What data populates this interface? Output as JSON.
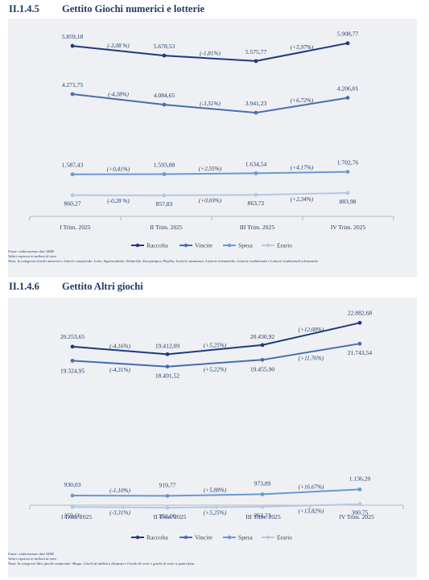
{
  "section1": {
    "number": "II.1.4.5",
    "title": "Gettito Giochi numerici e lotterie"
  },
  "section2": {
    "number": "II.1.4.6",
    "title": "Gettito Altri giochi"
  },
  "notes1": [
    "Fonte: elaborazione dati ADM",
    "Valori espressi in milioni di euro",
    "Nota: la categoria Giochi numerici e lotterie comprende: Lotto, Superenalotto, Winforlife, Eurojackpot, PlaySix, Lotterie istantanee, Lotterie telematiche, Lotterie tradizionali e Lotterie tradizionali telematiche"
  ],
  "notes2": [
    "Fonte: elaborazione dati ADM",
    "Valori espressi in milioni di euro",
    "Nota: la categoria Altri giochi comprende: Bingo, Giochi di abilità a distanza e Giochi di carte e giochi di sorte a quota fissa."
  ],
  "chart_data": [
    {
      "type": "line",
      "categories": [
        "I Trim. 2025",
        "II Trim. 2025",
        "III Trim. 2025",
        "IV Trim. 2025"
      ],
      "series": [
        {
          "name": "Raccolta",
          "color": "#1f3a7a",
          "values": [
            5859.18,
            5678.53,
            5575.77,
            5908.77
          ],
          "labels": [
            "5.859,18",
            "5.678,53",
            "5.575,77",
            "5.908,77"
          ],
          "changes": [
            "(-3,08 %)",
            "(-1,81%)",
            "(+5,97%)"
          ]
        },
        {
          "name": "Vincite",
          "color": "#4a6cb0",
          "values": [
            4271.75,
            4084.65,
            3941.23,
            4206.01
          ],
          "labels": [
            "4.271,75",
            "4.084,65",
            "3.941,23",
            "4.206,01"
          ],
          "changes": [
            "(-4,38%)",
            "(-3,51%)",
            "(+6,72%)"
          ]
        },
        {
          "name": "Spesa",
          "color": "#6a98d0",
          "values": [
            1587.43,
            1593.88,
            1634.54,
            1702.76
          ],
          "labels": [
            "1.587,43",
            "1.593,88",
            "1.634,54",
            "1.702,76"
          ],
          "changes": [
            "(+0,41%)",
            "(+2,55%)",
            "(+4,17%)"
          ]
        },
        {
          "name": "Erario",
          "color": "#b4c8e4",
          "values": [
            860.27,
            857.83,
            863.72,
            883.98
          ],
          "labels": [
            "860,27",
            "857,83",
            "863,72",
            "883,98"
          ],
          "changes": [
            "(-0,28 %)",
            "(+0,69%)",
            "(+2,34%)"
          ]
        }
      ],
      "legend": "bottom"
    },
    {
      "type": "line",
      "categories": [
        "I Trim. 2025",
        "II Trim. 2025",
        "III Trim. 2025",
        "IV Trim. 2025"
      ],
      "series": [
        {
          "name": "Raccolta",
          "color": "#1f3a7a",
          "values": [
            20253.65,
            19412.09,
            20430.92,
            22882.68
          ],
          "labels": [
            "20.253,65",
            "19.412,09",
            "20.430,92",
            "22.882,68"
          ],
          "changes": [
            "(-4,16%)",
            "(+5,25%)",
            "(+12,00%)"
          ]
        },
        {
          "name": "Vincite",
          "color": "#4a6cb0",
          "values": [
            19324.95,
            18491.52,
            19455.9,
            21743.54
          ],
          "labels": [
            "19.324,95",
            "18.491,52",
            "19.455,90",
            "21.743,54"
          ],
          "changes": [
            "(-4,31%)",
            "(+5,22%)",
            "(+11,76%)"
          ]
        },
        {
          "name": "Spesa",
          "color": "#6a98d0",
          "values": [
            930.03,
            919.77,
            973.89,
            1136.2
          ],
          "labels": [
            "930,03",
            "919,77",
            "973,89",
            "1.136,20"
          ],
          "changes": [
            "(-1,10%)",
            "(+5,88%)",
            "(+16,67%)"
          ]
        },
        {
          "name": "Erario",
          "color": "#b4c8e4",
          "values": [
            259.66,
            251.06,
            264.23,
            300.75
          ],
          "labels": [
            "259,66",
            "251,06",
            "264,23",
            "300,75"
          ],
          "changes": [
            "(-3,31%)",
            "(+5,25%)",
            "(+13,82%)"
          ]
        }
      ],
      "legend": "bottom"
    }
  ]
}
